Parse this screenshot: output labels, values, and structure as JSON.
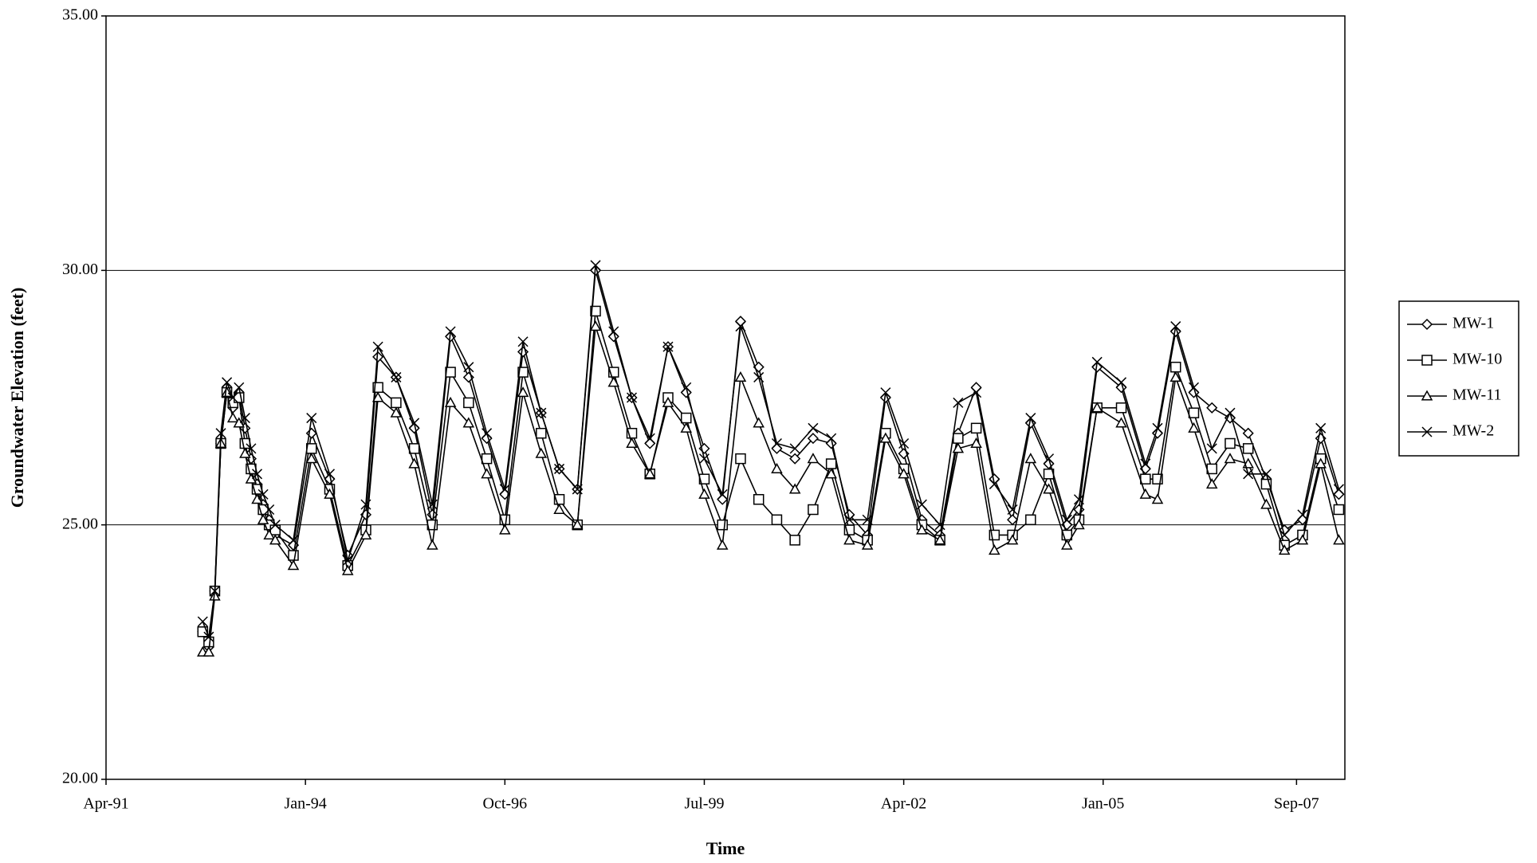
{
  "chart_data": {
    "type": "line",
    "x_label": "Time",
    "y_label": "Groundwater Elevation (feet)",
    "x": [
      "1992-08",
      "1992-09",
      "1992-10",
      "1992-11",
      "1992-12",
      "1993-01",
      "1993-02",
      "1993-03",
      "1993-04",
      "1993-05",
      "1993-06",
      "1993-07",
      "1993-08",
      "1993-11",
      "1994-02",
      "1994-05",
      "1994-08",
      "1994-11",
      "1995-01",
      "1995-04",
      "1995-07",
      "1995-10",
      "1996-01",
      "1996-04",
      "1996-07",
      "1996-10",
      "1997-01",
      "1997-04",
      "1997-07",
      "1997-10",
      "1998-01",
      "1998-04",
      "1998-07",
      "1998-10",
      "1999-01",
      "1999-04",
      "1999-07",
      "1999-10",
      "2000-01",
      "2000-04",
      "2000-07",
      "2000-10",
      "2001-01",
      "2001-04",
      "2001-07",
      "2001-10",
      "2002-01",
      "2002-04",
      "2002-07",
      "2002-10",
      "2003-01",
      "2003-04",
      "2003-07",
      "2003-10",
      "2004-01",
      "2004-04",
      "2004-07",
      "2004-09",
      "2004-12",
      "2005-04",
      "2005-08",
      "2005-10",
      "2006-01",
      "2006-04",
      "2006-07",
      "2006-10",
      "2007-01",
      "2007-04",
      "2007-07",
      "2007-10",
      "2008-01",
      "2008-04"
    ],
    "series": [
      {
        "name": "MW-1",
        "color": "#000000",
        "marker": "diamond",
        "values": [
          22.9,
          22.6,
          23.7,
          26.6,
          27.7,
          27.3,
          27.6,
          26.9,
          26.3,
          25.8,
          25.4,
          25.1,
          24.8,
          24.6,
          26.8,
          25.9,
          24.4,
          25.2,
          28.3,
          27.9,
          26.9,
          25.2,
          28.7,
          27.9,
          26.7,
          25.6,
          28.4,
          27.2,
          26.1,
          25.7,
          30.0,
          28.7,
          27.5,
          26.6,
          28.5,
          27.6,
          26.5,
          25.5,
          29.0,
          28.1,
          26.5,
          26.3,
          26.7,
          26.6,
          25.2,
          24.8,
          27.5,
          26.4,
          25.1,
          24.8,
          26.8,
          27.7,
          25.9,
          25.1,
          27.0,
          26.2,
          25.0,
          25.3,
          28.1,
          27.7,
          26.1,
          26.8,
          28.8,
          27.6,
          27.3,
          27.1,
          26.8,
          25.9,
          24.9,
          25.1,
          26.7,
          25.6
        ]
      },
      {
        "name": "MW-10",
        "color": "#000000",
        "marker": "square",
        "values": [
          22.9,
          22.7,
          23.7,
          26.6,
          27.6,
          27.4,
          27.5,
          26.6,
          26.1,
          25.7,
          25.3,
          25.0,
          24.9,
          24.4,
          26.5,
          25.7,
          24.2,
          24.9,
          27.7,
          27.4,
          26.5,
          25.0,
          28.0,
          27.4,
          26.3,
          25.1,
          28.0,
          26.8,
          25.5,
          25.0,
          29.2,
          28.0,
          26.8,
          26.0,
          27.5,
          27.1,
          25.9,
          25.0,
          26.3,
          25.5,
          25.1,
          24.7,
          25.3,
          26.2,
          24.9,
          24.7,
          26.8,
          26.1,
          25.0,
          24.7,
          26.7,
          26.9,
          24.8,
          24.8,
          25.1,
          26.0,
          24.8,
          25.1,
          27.3,
          27.3,
          25.9,
          25.9,
          28.1,
          27.2,
          26.1,
          26.6,
          26.5,
          25.8,
          24.6,
          24.8,
          26.3,
          25.3
        ]
      },
      {
        "name": "MW-11",
        "color": "#000000",
        "marker": "triangle",
        "values": [
          22.5,
          22.5,
          23.6,
          26.6,
          27.6,
          27.1,
          27.0,
          26.4,
          25.9,
          25.5,
          25.1,
          24.8,
          24.7,
          24.2,
          26.3,
          25.6,
          24.1,
          24.8,
          27.5,
          27.2,
          26.2,
          24.6,
          27.4,
          27.0,
          26.0,
          24.9,
          27.6,
          26.4,
          25.3,
          25.0,
          28.9,
          27.8,
          26.6,
          26.0,
          27.4,
          26.9,
          25.6,
          24.6,
          27.9,
          27.0,
          26.1,
          25.7,
          26.3,
          26.0,
          24.7,
          24.6,
          26.7,
          26.0,
          24.9,
          24.7,
          26.5,
          26.6,
          24.5,
          24.7,
          26.3,
          25.7,
          24.6,
          25.0,
          27.3,
          27.0,
          25.6,
          25.5,
          27.9,
          26.9,
          25.8,
          26.3,
          26.2,
          25.4,
          24.5,
          24.7,
          26.2,
          24.7
        ]
      },
      {
        "name": "MW-2",
        "color": "#000000",
        "marker": "x",
        "values": [
          23.1,
          22.8,
          23.7,
          26.8,
          27.8,
          27.5,
          27.7,
          27.1,
          26.5,
          26.0,
          25.6,
          25.3,
          25.0,
          24.7,
          27.1,
          26.0,
          24.3,
          25.4,
          28.5,
          27.9,
          27.0,
          25.4,
          28.8,
          28.1,
          26.8,
          25.7,
          28.6,
          27.2,
          26.1,
          25.7,
          30.1,
          28.8,
          27.5,
          26.7,
          28.5,
          27.7,
          26.3,
          25.6,
          28.9,
          27.9,
          26.6,
          26.5,
          26.9,
          26.7,
          25.1,
          25.1,
          27.6,
          26.6,
          25.4,
          25.0,
          27.4,
          27.6,
          25.8,
          25.3,
          27.1,
          26.3,
          25.1,
          25.5,
          28.2,
          27.8,
          26.2,
          26.9,
          28.9,
          27.7,
          26.5,
          27.2,
          26.0,
          26.0,
          24.8,
          25.2,
          26.9,
          25.7
        ]
      }
    ],
    "xlim": [
      "1991-04",
      "2008-05"
    ],
    "xticks": [
      {
        "value": "1991-04",
        "label": "Apr-91"
      },
      {
        "value": "1994-01",
        "label": "Jan-94"
      },
      {
        "value": "1996-10",
        "label": "Oct-96"
      },
      {
        "value": "1999-07",
        "label": "Jul-99"
      },
      {
        "value": "2002-04",
        "label": "Apr-02"
      },
      {
        "value": "2005-01",
        "label": "Jan-05"
      },
      {
        "value": "2007-09",
        "label": "Sep-07"
      }
    ],
    "ylim": [
      20,
      35
    ],
    "yticks": [
      {
        "value": 20,
        "label": "20.00"
      },
      {
        "value": 25,
        "label": "25.00"
      },
      {
        "value": 30,
        "label": "30.00"
      },
      {
        "value": 35,
        "label": "35.00"
      }
    ],
    "grid": true,
    "legend_position": "right"
  }
}
